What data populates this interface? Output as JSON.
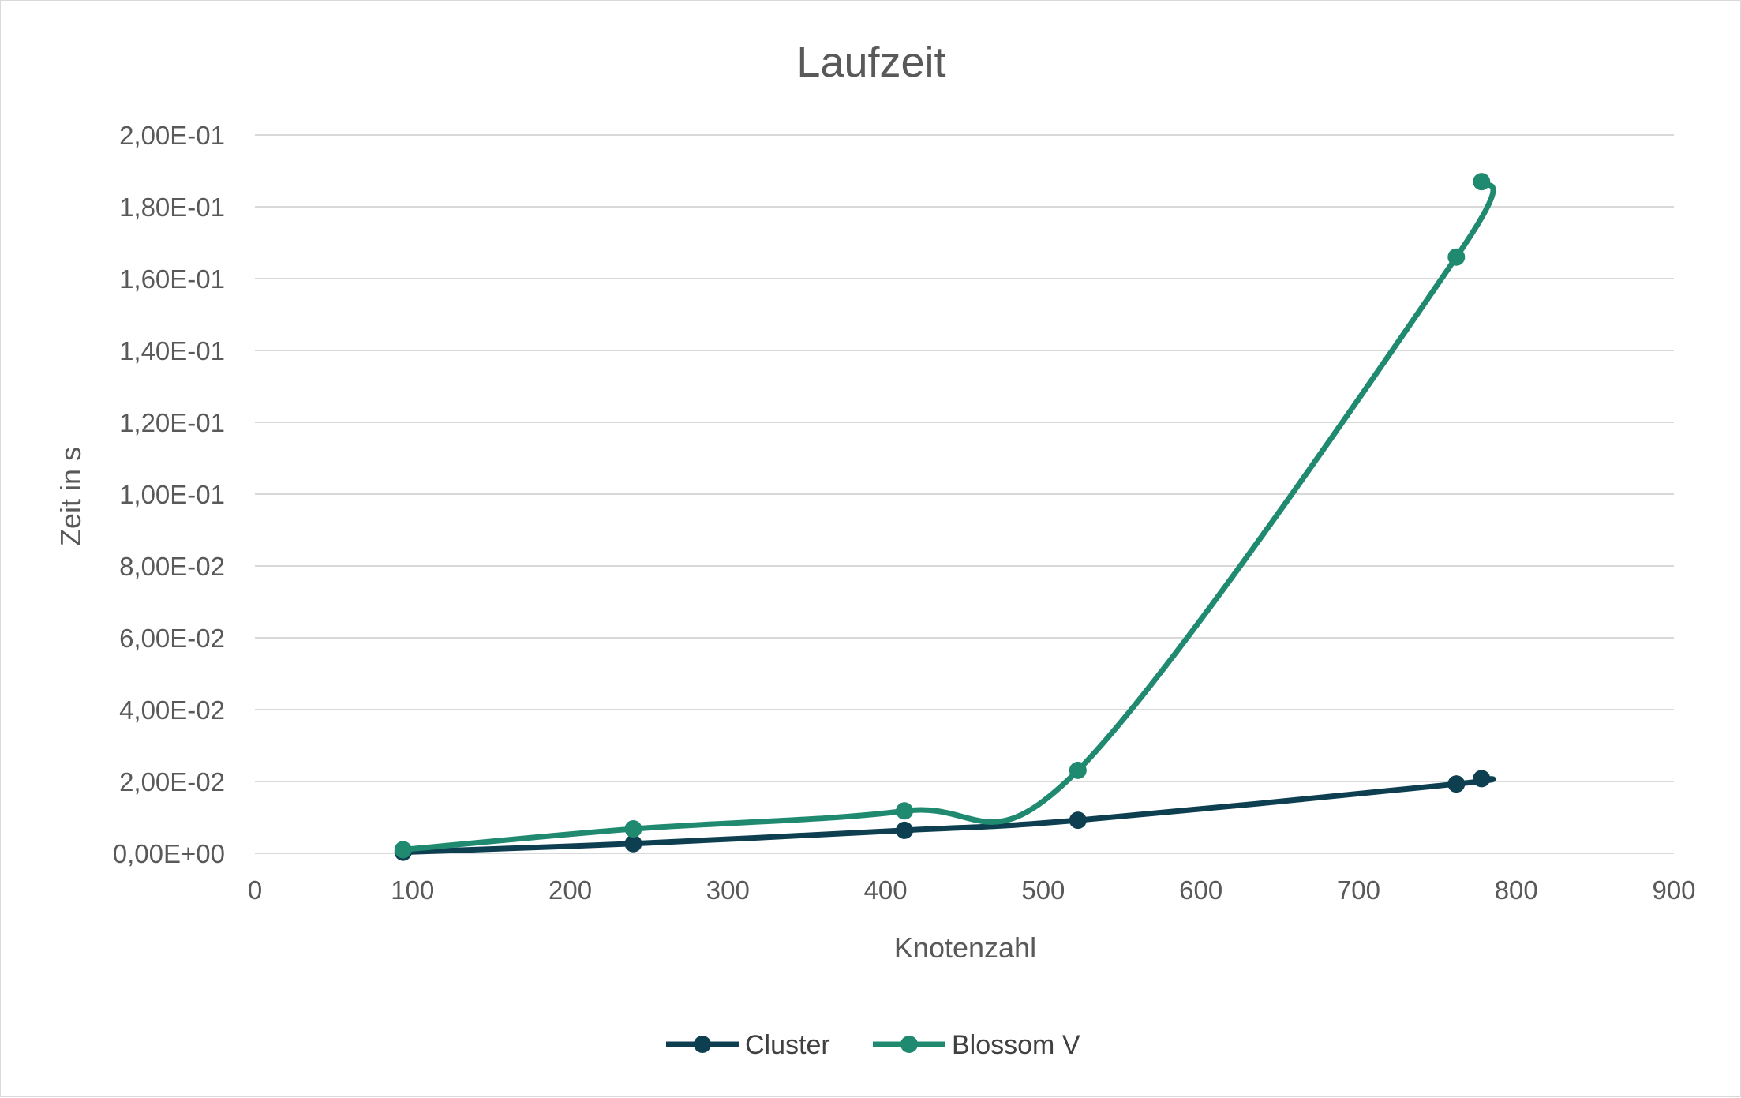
{
  "chart_data": {
    "type": "scatter",
    "title": "Laufzeit",
    "xlabel": "Knotenzahl",
    "ylabel": "Zeit in s",
    "xlim": [
      0,
      900
    ],
    "ylim": [
      0,
      0.2
    ],
    "x_ticks": [
      "0",
      "100",
      "200",
      "300",
      "400",
      "500",
      "600",
      "700",
      "800",
      "900"
    ],
    "y_ticks": [
      "0,00E+00",
      "2,00E-02",
      "4,00E-02",
      "6,00E-02",
      "8,00E-02",
      "1,00E-01",
      "1,20E-01",
      "1,40E-01",
      "1,60E-01",
      "1,80E-01",
      "2,00E-01"
    ],
    "grid": "horizontal",
    "legend_position": "bottom",
    "series": [
      {
        "name": "Cluster",
        "color": "#0e3f51",
        "points": [
          [
            94,
            0.0003
          ],
          [
            240,
            0.0027
          ],
          [
            412,
            0.0064
          ],
          [
            522,
            0.0092
          ],
          [
            762,
            0.0193
          ],
          [
            778,
            0.0208
          ]
        ]
      },
      {
        "name": "Blossom V",
        "color": "#1f8a70",
        "points": [
          [
            94,
            0.001
          ],
          [
            240,
            0.0068
          ],
          [
            412,
            0.0118
          ],
          [
            522,
            0.0231
          ],
          [
            762,
            0.166
          ],
          [
            778,
            0.187
          ]
        ]
      }
    ]
  }
}
